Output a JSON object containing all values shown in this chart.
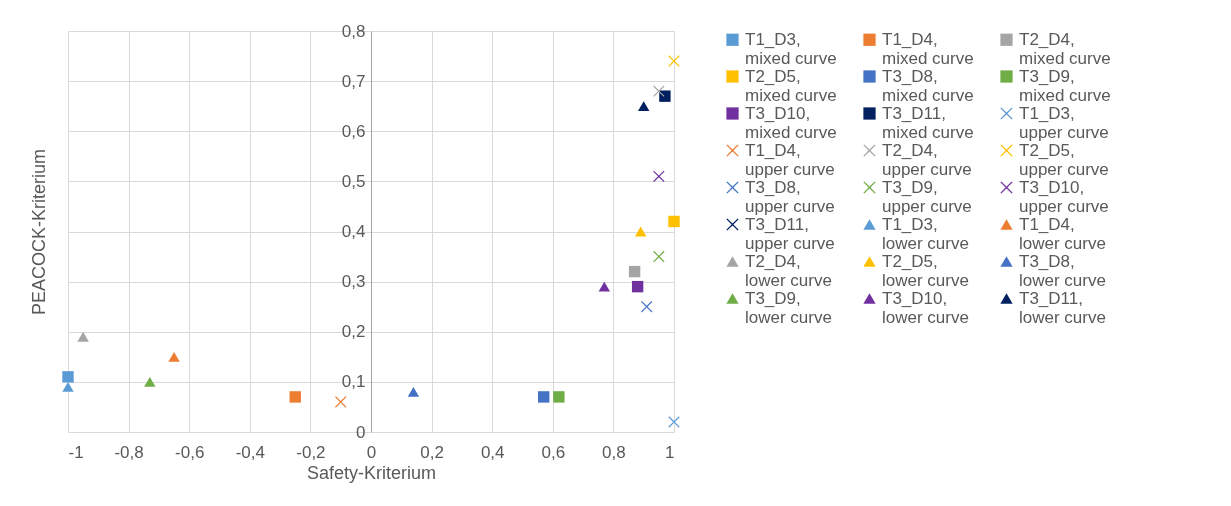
{
  "chart_data": {
    "type": "scatter",
    "xlabel": "Safety-Kriterium",
    "ylabel": "PEACOCK-Kriterium",
    "grid": true,
    "legend": "right",
    "xlim": [
      -1,
      1
    ],
    "xticks": [
      -1,
      {
        "value": -0.8,
        "label": "-0,8"
      },
      {
        "value": -0.6,
        "label": "-0,6"
      },
      {
        "value": -0.4,
        "label": "-0,4"
      },
      {
        "value": -0.2,
        "label": "-0,2"
      },
      0,
      {
        "value": 0.2,
        "label": "0,2"
      },
      {
        "value": 0.4,
        "label": "0,4"
      },
      {
        "value": 0.6,
        "label": "0,6"
      },
      {
        "value": 0.8,
        "label": "0,8"
      },
      1
    ],
    "ylim": [
      0,
      0.8
    ],
    "yticks": [
      0,
      {
        "value": 0.1,
        "label": "0,1"
      },
      {
        "value": 0.2,
        "label": "0,2"
      },
      {
        "value": 0.3,
        "label": "0,3"
      },
      {
        "value": 0.4,
        "label": "0,4"
      },
      {
        "value": 0.5,
        "label": "0,5"
      },
      {
        "value": 0.6,
        "label": "0,6"
      },
      {
        "value": 0.7,
        "label": "0,7"
      },
      {
        "value": 0.8,
        "label": "0,8"
      }
    ],
    "series": [
      {
        "name": "T1_D3, mixed curve",
        "color": "#5b9bd5",
        "marker": "square",
        "x": [
          -1
        ],
        "values": [
          0.11
        ]
      },
      {
        "name": "T1_D4, mixed curve",
        "color": "#ed7d31",
        "marker": "square",
        "x": [
          -0.25
        ],
        "values": [
          0.07
        ]
      },
      {
        "name": "T2_D4, mixed curve",
        "color": "#a5a5a5",
        "marker": "square",
        "x": [
          0.87
        ],
        "values": [
          0.32
        ]
      },
      {
        "name": "T2_D5, mixed curve",
        "color": "#ffc000",
        "marker": "square",
        "x": [
          1
        ],
        "values": [
          0.42
        ]
      },
      {
        "name": "T3_D8, mixed curve",
        "color": "#4472c4",
        "marker": "square",
        "x": [
          0.57
        ],
        "values": [
          0.07
        ]
      },
      {
        "name": "T3_D9, mixed curve",
        "color": "#70ad47",
        "marker": "square",
        "x": [
          0.62
        ],
        "values": [
          0.07
        ]
      },
      {
        "name": "T3_D10, mixed curve",
        "color": "#7030a0",
        "marker": "square",
        "x": [
          0.88
        ],
        "values": [
          0.29
        ]
      },
      {
        "name": "T3_D11, mixed curve",
        "color": "#002060",
        "marker": "square",
        "x": [
          0.97
        ],
        "values": [
          0.67
        ]
      },
      {
        "name": "T1_D3, upper curve",
        "color": "#5b9bd5",
        "marker": "cross",
        "x": [
          1
        ],
        "values": [
          0.02
        ]
      },
      {
        "name": "T1_D4, upper curve",
        "color": "#ed7d31",
        "marker": "cross",
        "x": [
          -0.1
        ],
        "values": [
          0.06
        ]
      },
      {
        "name": "T2_D4, upper curve",
        "color": "#a5a5a5",
        "marker": "cross",
        "x": [
          0.95
        ],
        "values": [
          0.68
        ]
      },
      {
        "name": "T2_D5, upper curve",
        "color": "#ffc000",
        "marker": "cross",
        "x": [
          1
        ],
        "values": [
          0.74
        ]
      },
      {
        "name": "T3_D8, upper curve",
        "color": "#4472c4",
        "marker": "cross",
        "x": [
          0.91
        ],
        "values": [
          0.25
        ]
      },
      {
        "name": "T3_D9, upper curve",
        "color": "#70ad47",
        "marker": "cross",
        "x": [
          0.95
        ],
        "values": [
          0.35
        ]
      },
      {
        "name": "T3_D10, upper curve",
        "color": "#7030a0",
        "marker": "cross",
        "x": [
          0.95
        ],
        "values": [
          0.51
        ]
      },
      {
        "name": "T3_D11, upper curve",
        "color": "#002060",
        "marker": "cross",
        "x": [
          null
        ],
        "values": [
          null
        ]
      },
      {
        "name": "T1_D3, lower curve",
        "color": "#5b9bd5",
        "marker": "triangle",
        "x": [
          -1
        ],
        "values": [
          0.09
        ]
      },
      {
        "name": "T1_D4, lower curve",
        "color": "#ed7d31",
        "marker": "triangle",
        "x": [
          -0.65
        ],
        "values": [
          0.15
        ]
      },
      {
        "name": "T2_D4, lower curve",
        "color": "#a5a5a5",
        "marker": "triangle",
        "x": [
          -0.95
        ],
        "values": [
          0.19
        ]
      },
      {
        "name": "T2_D5, lower curve",
        "color": "#ffc000",
        "marker": "triangle",
        "x": [
          0.89
        ],
        "values": [
          0.4
        ]
      },
      {
        "name": "T3_D8, lower curve",
        "color": "#4472c4",
        "marker": "triangle",
        "x": [
          0.14
        ],
        "values": [
          0.08
        ]
      },
      {
        "name": "T3_D9, lower curve",
        "color": "#70ad47",
        "marker": "triangle",
        "x": [
          -0.73
        ],
        "values": [
          0.1
        ]
      },
      {
        "name": "T3_D10, lower curve",
        "color": "#7030a0",
        "marker": "triangle",
        "x": [
          0.77
        ],
        "values": [
          0.29
        ]
      },
      {
        "name": "T3_D11, lower curve",
        "color": "#002060",
        "marker": "triangle",
        "x": [
          0.9
        ],
        "values": [
          0.65
        ]
      }
    ]
  }
}
